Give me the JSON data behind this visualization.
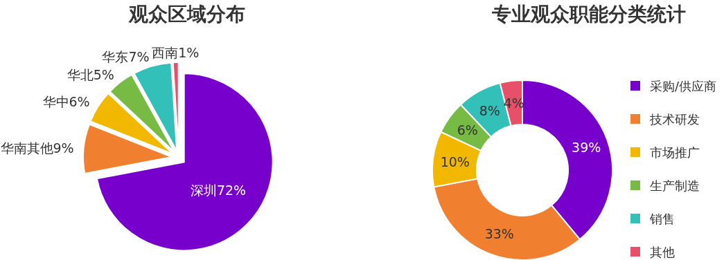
{
  "chart_data": [
    {
      "type": "pie",
      "title": "观众区域分布",
      "categories": [
        "深圳",
        "华南其他",
        "华中",
        "华北",
        "华东",
        "西南"
      ],
      "values": [
        72,
        9,
        6,
        5,
        7,
        1
      ],
      "colors": [
        "#7700cc",
        "#f08030",
        "#f2b800",
        "#77bb44",
        "#33c0b8",
        "#e8506a"
      ],
      "value_labels": [
        "72%",
        "9%",
        "6%",
        "5%",
        "7%",
        "1%"
      ],
      "legend": false
    },
    {
      "type": "donut",
      "title": "专业观众职能分类统计",
      "categories": [
        "采购/供应商",
        "技术研发",
        "市场推广",
        "生产制造",
        "销售",
        "其他"
      ],
      "values": [
        39,
        33,
        10,
        6,
        8,
        4
      ],
      "colors": [
        "#7700cc",
        "#f08030",
        "#f2b800",
        "#77bb44",
        "#33c0b8",
        "#e8506a"
      ],
      "value_labels": [
        "39%",
        "33%",
        "10%",
        "6%",
        "8%",
        "4%"
      ],
      "legend": "right"
    }
  ]
}
